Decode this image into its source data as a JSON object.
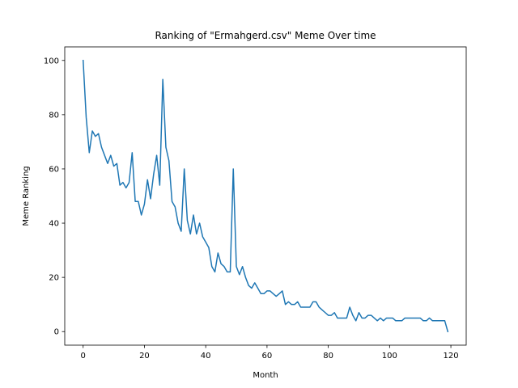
{
  "chart_data": {
    "type": "line",
    "title": "Ranking of \"Ermahgerd.csv\" Meme Over time",
    "xlabel": "Month",
    "ylabel": "Meme Ranking",
    "xlim": [
      -6,
      125
    ],
    "ylim": [
      -5,
      105
    ],
    "xticks": [
      0,
      20,
      40,
      60,
      80,
      100,
      120
    ],
    "yticks": [
      0,
      20,
      40,
      60,
      80,
      100
    ],
    "grid": false,
    "line_color": "#1f77b4",
    "series": [
      {
        "values": [
          100,
          79,
          66,
          74,
          72,
          73,
          68,
          65,
          62,
          65,
          61,
          62,
          54,
          55,
          53,
          55,
          66,
          48,
          48,
          43,
          47,
          56,
          49,
          58,
          65,
          54,
          93,
          68,
          63,
          48,
          46,
          40,
          37,
          60,
          41,
          36,
          43,
          36,
          40,
          35,
          33,
          31,
          24,
          22,
          29,
          25,
          24,
          22,
          22,
          60,
          24,
          21,
          24,
          20,
          17,
          16,
          18,
          16,
          14,
          14,
          15,
          15,
          14,
          13,
          14,
          15,
          10,
          11,
          10,
          10,
          11,
          9,
          9,
          9,
          9,
          11,
          11,
          9,
          8,
          7,
          6,
          6,
          7,
          5,
          5,
          5,
          5,
          9,
          6,
          4,
          7,
          5,
          5,
          6,
          6,
          5,
          4,
          5,
          4,
          5,
          5,
          5,
          4,
          4,
          4,
          5,
          5,
          5,
          5,
          5,
          5,
          4,
          4,
          5,
          4,
          4,
          4,
          4,
          4,
          0
        ]
      }
    ]
  }
}
